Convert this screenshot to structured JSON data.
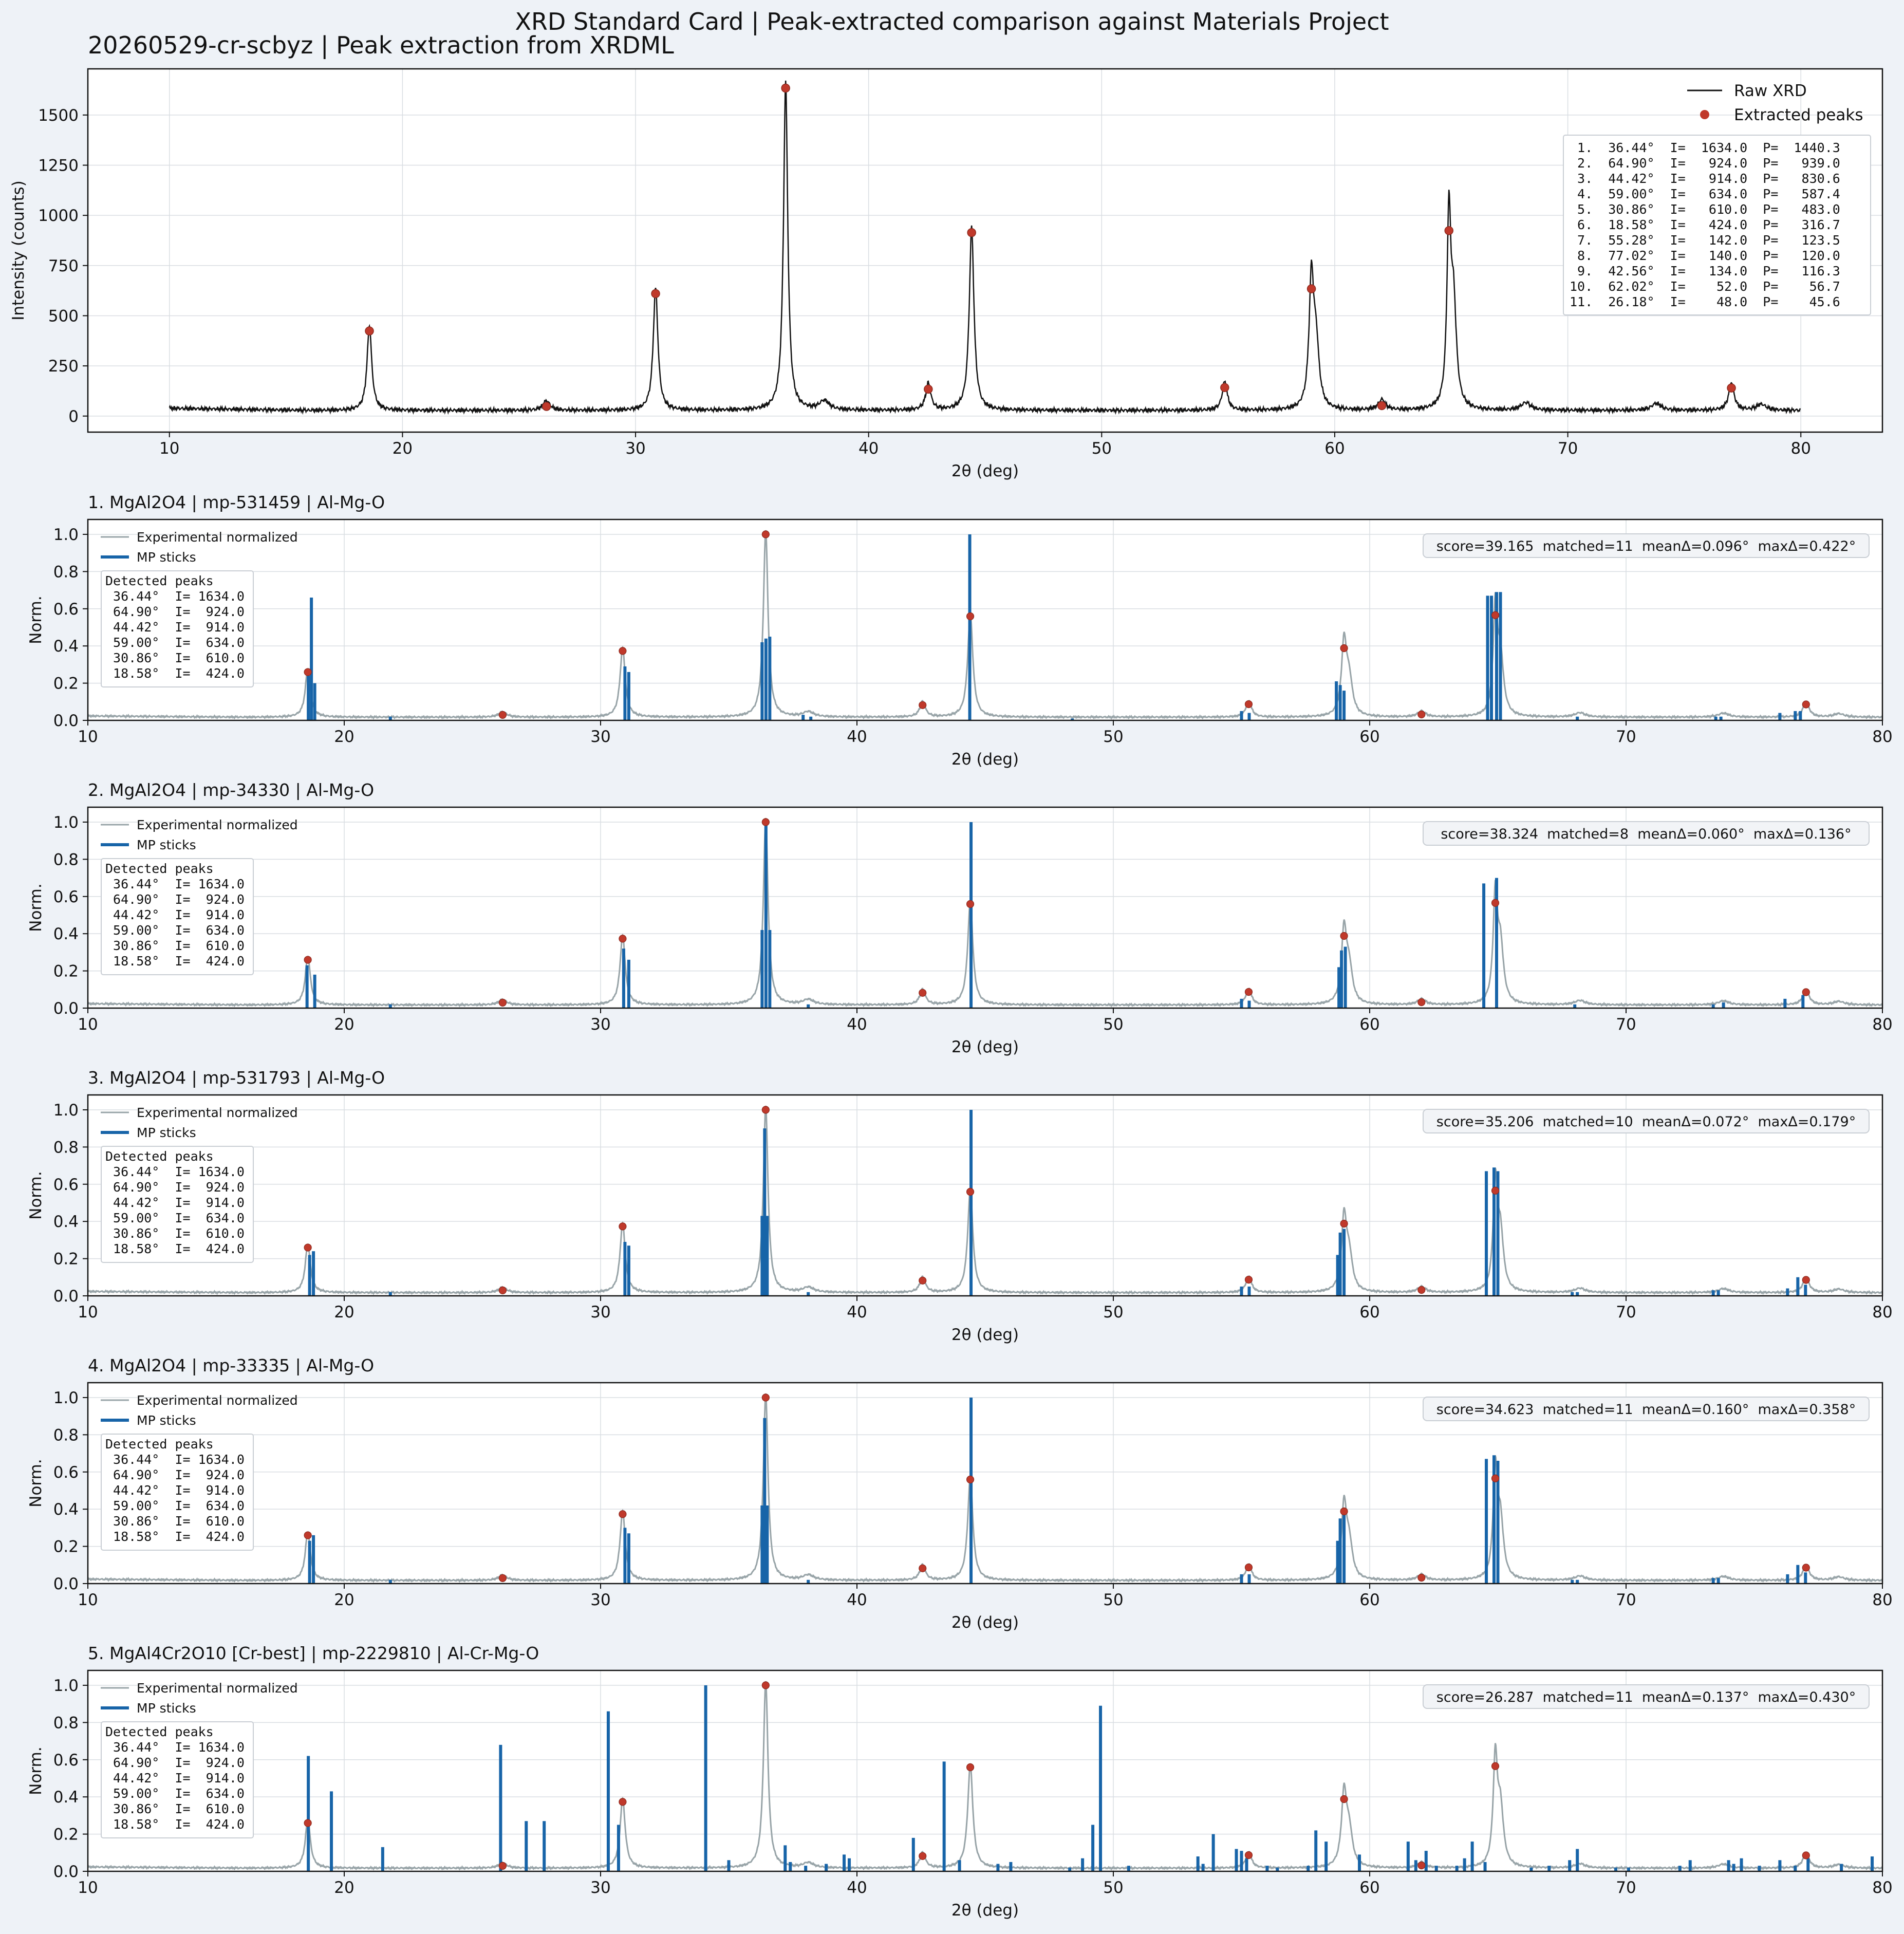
{
  "figure": {
    "suptitle": "XRD Standard Card | Peak-extracted comparison against Materials Project",
    "colors": {
      "background": "#eef2f7",
      "raw_line": "#111111",
      "experimental_line": "#98a4a8",
      "stick": "#1764a8",
      "peak_marker": "#c0392b",
      "grid": "#d9dde2"
    }
  },
  "chart_data": [
    {
      "id": "raw",
      "type": "line",
      "title": "20260529-cr-scbyz | Peak extraction from XRDML",
      "xlabel": "2θ (deg)",
      "ylabel": "Intensity (counts)",
      "xlim": [
        6.5,
        83.5
      ],
      "ylim": [
        -80,
        1730
      ],
      "xticks": [
        10,
        20,
        30,
        40,
        50,
        60,
        70,
        80
      ],
      "yticks": [
        0,
        250,
        500,
        750,
        1000,
        1250,
        1500
      ],
      "grid": true,
      "legend": {
        "position": "top-right",
        "entries": [
          "Raw XRD",
          "Extracted peaks"
        ]
      },
      "x_range": [
        10,
        80
      ],
      "baseline": 28,
      "peaks": [
        {
          "x": 18.58,
          "y": 424,
          "w": 0.12
        },
        {
          "x": 26.18,
          "y": 48,
          "w": 0.18
        },
        {
          "x": 30.86,
          "y": 610,
          "w": 0.12
        },
        {
          "x": 36.44,
          "y": 1634,
          "w": 0.11
        },
        {
          "x": 38.1,
          "y": 45,
          "w": 0.25
        },
        {
          "x": 42.56,
          "y": 134,
          "w": 0.13
        },
        {
          "x": 44.42,
          "y": 914,
          "w": 0.12
        },
        {
          "x": 55.28,
          "y": 142,
          "w": 0.13
        },
        {
          "x": 59.0,
          "y": 634,
          "w": 0.12
        },
        {
          "x": 59.2,
          "y": 300,
          "w": 0.15
        },
        {
          "x": 62.02,
          "y": 52,
          "w": 0.18
        },
        {
          "x": 64.9,
          "y": 924,
          "w": 0.1
        },
        {
          "x": 65.1,
          "y": 500,
          "w": 0.14
        },
        {
          "x": 68.2,
          "y": 38,
          "w": 0.25
        },
        {
          "x": 73.8,
          "y": 35,
          "w": 0.25
        },
        {
          "x": 77.02,
          "y": 140,
          "w": 0.14
        },
        {
          "x": 78.3,
          "y": 30,
          "w": 0.25
        }
      ],
      "extracted_peaks": [
        {
          "x": 36.44,
          "y": 1634
        },
        {
          "x": 64.9,
          "y": 924
        },
        {
          "x": 44.42,
          "y": 914
        },
        {
          "x": 59.0,
          "y": 634
        },
        {
          "x": 30.86,
          "y": 610
        },
        {
          "x": 18.58,
          "y": 424
        },
        {
          "x": 55.28,
          "y": 142
        },
        {
          "x": 77.02,
          "y": 140
        },
        {
          "x": 42.56,
          "y": 134
        },
        {
          "x": 62.02,
          "y": 52
        },
        {
          "x": 26.18,
          "y": 48
        }
      ],
      "peak_table": [
        " 1.  36.44°  I=  1634.0  P=  1440.3",
        " 2.  64.90°  I=   924.0  P=   939.0",
        " 3.  44.42°  I=   914.0  P=   830.6",
        " 4.  59.00°  I=   634.0  P=   587.4",
        " 5.  30.86°  I=   610.0  P=   483.0",
        " 6.  18.58°  I=   424.0  P=   316.7",
        " 7.  55.28°  I=   142.0  P=   123.5",
        " 8.  77.02°  I=   140.0  P=   120.0",
        " 9.  42.56°  I=   134.0  P=   116.3",
        "10.  62.02°  I=    52.0  P=    56.7",
        "11.  26.18°  I=    48.0  P=    45.6"
      ]
    },
    {
      "id": "match1",
      "type": "bar",
      "title": "1. MgAl2O4 | mp-531459 | Al-Mg-O",
      "xlabel": "2θ (deg)",
      "ylabel": "Norm.",
      "xlim": [
        10,
        80
      ],
      "ylim": [
        0,
        1.08
      ],
      "xticks": [
        10,
        20,
        30,
        40,
        50,
        60,
        70,
        80
      ],
      "yticks": [
        0.0,
        0.2,
        0.4,
        0.6,
        0.8,
        1.0
      ],
      "legend": {
        "position": "top-left",
        "entries": [
          "Experimental normalized",
          "MP sticks"
        ]
      },
      "score_text": "score=39.165  matched=11  meanΔ=0.096°  maxΔ=0.422°",
      "detected_title": "Detected peaks",
      "detected_lines": [
        " 36.44°  I= 1634.0",
        " 64.90°  I=  924.0",
        " 44.42°  I=  914.0",
        " 59.00°  I=  634.0",
        " 30.86°  I=  610.0",
        " 18.58°  I=  424.0"
      ],
      "sticks": [
        {
          "x": 18.6,
          "y": 0.24
        },
        {
          "x": 18.72,
          "y": 0.66
        },
        {
          "x": 18.85,
          "y": 0.2
        },
        {
          "x": 21.8,
          "y": 0.02
        },
        {
          "x": 30.95,
          "y": 0.29
        },
        {
          "x": 31.1,
          "y": 0.26
        },
        {
          "x": 36.3,
          "y": 0.42
        },
        {
          "x": 36.45,
          "y": 0.44
        },
        {
          "x": 36.6,
          "y": 0.45
        },
        {
          "x": 37.9,
          "y": 0.03
        },
        {
          "x": 38.2,
          "y": 0.02
        },
        {
          "x": 44.4,
          "y": 1.0
        },
        {
          "x": 48.4,
          "y": 0.01
        },
        {
          "x": 55.0,
          "y": 0.05
        },
        {
          "x": 55.3,
          "y": 0.04
        },
        {
          "x": 58.7,
          "y": 0.21
        },
        {
          "x": 58.85,
          "y": 0.19
        },
        {
          "x": 59.0,
          "y": 0.16
        },
        {
          "x": 64.6,
          "y": 0.67
        },
        {
          "x": 64.75,
          "y": 0.67
        },
        {
          "x": 64.95,
          "y": 0.69
        },
        {
          "x": 65.1,
          "y": 0.69
        },
        {
          "x": 68.1,
          "y": 0.02
        },
        {
          "x": 73.5,
          "y": 0.02
        },
        {
          "x": 73.7,
          "y": 0.02
        },
        {
          "x": 76.0,
          "y": 0.04
        },
        {
          "x": 76.6,
          "y": 0.05
        },
        {
          "x": 76.8,
          "y": 0.05
        }
      ]
    },
    {
      "id": "match2",
      "type": "bar",
      "title": "2. MgAl2O4 | mp-34330 | Al-Mg-O",
      "xlabel": "2θ (deg)",
      "ylabel": "Norm.",
      "xlim": [
        10,
        80
      ],
      "ylim": [
        0,
        1.08
      ],
      "xticks": [
        10,
        20,
        30,
        40,
        50,
        60,
        70,
        80
      ],
      "yticks": [
        0.0,
        0.2,
        0.4,
        0.6,
        0.8,
        1.0
      ],
      "legend": {
        "position": "top-left",
        "entries": [
          "Experimental normalized",
          "MP sticks"
        ]
      },
      "score_text": "score=38.324  matched=8  meanΔ=0.060°  maxΔ=0.136°",
      "detected_title": "Detected peaks",
      "detected_lines": [
        " 36.44°  I= 1634.0",
        " 64.90°  I=  924.0",
        " 44.42°  I=  914.0",
        " 59.00°  I=  634.0",
        " 30.86°  I=  610.0",
        " 18.58°  I=  424.0"
      ],
      "sticks": [
        {
          "x": 18.55,
          "y": 0.23
        },
        {
          "x": 18.85,
          "y": 0.18
        },
        {
          "x": 21.8,
          "y": 0.02
        },
        {
          "x": 30.9,
          "y": 0.32
        },
        {
          "x": 31.1,
          "y": 0.26
        },
        {
          "x": 36.3,
          "y": 0.42
        },
        {
          "x": 36.45,
          "y": 1.0
        },
        {
          "x": 36.6,
          "y": 0.42
        },
        {
          "x": 38.1,
          "y": 0.02
        },
        {
          "x": 44.45,
          "y": 1.0
        },
        {
          "x": 55.0,
          "y": 0.05
        },
        {
          "x": 55.3,
          "y": 0.04
        },
        {
          "x": 58.8,
          "y": 0.22
        },
        {
          "x": 58.9,
          "y": 0.31
        },
        {
          "x": 59.05,
          "y": 0.33
        },
        {
          "x": 64.45,
          "y": 0.67
        },
        {
          "x": 64.95,
          "y": 0.7
        },
        {
          "x": 68.0,
          "y": 0.02
        },
        {
          "x": 73.4,
          "y": 0.02
        },
        {
          "x": 73.8,
          "y": 0.03
        },
        {
          "x": 76.2,
          "y": 0.05
        },
        {
          "x": 76.9,
          "y": 0.07
        }
      ]
    },
    {
      "id": "match3",
      "type": "bar",
      "title": "3. MgAl2O4 | mp-531793 | Al-Mg-O",
      "xlabel": "2θ (deg)",
      "ylabel": "Norm.",
      "xlim": [
        10,
        80
      ],
      "ylim": [
        0,
        1.08
      ],
      "xticks": [
        10,
        20,
        30,
        40,
        50,
        60,
        70,
        80
      ],
      "yticks": [
        0.0,
        0.2,
        0.4,
        0.6,
        0.8,
        1.0
      ],
      "legend": {
        "position": "top-left",
        "entries": [
          "Experimental normalized",
          "MP sticks"
        ]
      },
      "score_text": "score=35.206  matched=10  meanΔ=0.072°  maxΔ=0.179°",
      "detected_title": "Detected peaks",
      "detected_lines": [
        " 36.44°  I= 1634.0",
        " 64.90°  I=  924.0",
        " 44.42°  I=  914.0",
        " 59.00°  I=  634.0",
        " 30.86°  I=  610.0",
        " 18.58°  I=  424.0"
      ],
      "sticks": [
        {
          "x": 18.65,
          "y": 0.22
        },
        {
          "x": 18.8,
          "y": 0.24
        },
        {
          "x": 21.8,
          "y": 0.02
        },
        {
          "x": 30.95,
          "y": 0.29
        },
        {
          "x": 31.1,
          "y": 0.27
        },
        {
          "x": 36.3,
          "y": 0.43
        },
        {
          "x": 36.4,
          "y": 0.9
        },
        {
          "x": 36.5,
          "y": 0.43
        },
        {
          "x": 38.1,
          "y": 0.02
        },
        {
          "x": 44.45,
          "y": 1.0
        },
        {
          "x": 55.0,
          "y": 0.05
        },
        {
          "x": 55.3,
          "y": 0.05
        },
        {
          "x": 58.75,
          "y": 0.22
        },
        {
          "x": 58.85,
          "y": 0.34
        },
        {
          "x": 59.0,
          "y": 0.36
        },
        {
          "x": 64.55,
          "y": 0.67
        },
        {
          "x": 64.85,
          "y": 0.69
        },
        {
          "x": 65.0,
          "y": 0.67
        },
        {
          "x": 67.9,
          "y": 0.02
        },
        {
          "x": 68.1,
          "y": 0.02
        },
        {
          "x": 73.4,
          "y": 0.03
        },
        {
          "x": 73.6,
          "y": 0.03
        },
        {
          "x": 76.3,
          "y": 0.04
        },
        {
          "x": 76.7,
          "y": 0.1
        },
        {
          "x": 77.0,
          "y": 0.06
        }
      ]
    },
    {
      "id": "match4",
      "type": "bar",
      "title": "4. MgAl2O4 | mp-33335 | Al-Mg-O",
      "xlabel": "2θ (deg)",
      "ylabel": "Norm.",
      "xlim": [
        10,
        80
      ],
      "ylim": [
        0,
        1.08
      ],
      "xticks": [
        10,
        20,
        30,
        40,
        50,
        60,
        70,
        80
      ],
      "yticks": [
        0.0,
        0.2,
        0.4,
        0.6,
        0.8,
        1.0
      ],
      "legend": {
        "position": "top-left",
        "entries": [
          "Experimental normalized",
          "MP sticks"
        ]
      },
      "score_text": "score=34.623  matched=11  meanΔ=0.160°  maxΔ=0.358°",
      "detected_title": "Detected peaks",
      "detected_lines": [
        " 36.44°  I= 1634.0",
        " 64.90°  I=  924.0",
        " 44.42°  I=  914.0",
        " 59.00°  I=  634.0",
        " 30.86°  I=  610.0",
        " 18.58°  I=  424.0"
      ],
      "sticks": [
        {
          "x": 18.65,
          "y": 0.23
        },
        {
          "x": 18.8,
          "y": 0.26
        },
        {
          "x": 21.8,
          "y": 0.02
        },
        {
          "x": 30.95,
          "y": 0.3
        },
        {
          "x": 31.1,
          "y": 0.27
        },
        {
          "x": 36.3,
          "y": 0.42
        },
        {
          "x": 36.4,
          "y": 0.89
        },
        {
          "x": 36.5,
          "y": 0.42
        },
        {
          "x": 38.1,
          "y": 0.02
        },
        {
          "x": 44.45,
          "y": 1.0
        },
        {
          "x": 55.0,
          "y": 0.05
        },
        {
          "x": 55.3,
          "y": 0.05
        },
        {
          "x": 58.75,
          "y": 0.23
        },
        {
          "x": 58.85,
          "y": 0.35
        },
        {
          "x": 59.0,
          "y": 0.38
        },
        {
          "x": 64.55,
          "y": 0.67
        },
        {
          "x": 64.85,
          "y": 0.69
        },
        {
          "x": 65.0,
          "y": 0.66
        },
        {
          "x": 67.9,
          "y": 0.02
        },
        {
          "x": 68.1,
          "y": 0.02
        },
        {
          "x": 73.4,
          "y": 0.03
        },
        {
          "x": 73.6,
          "y": 0.03
        },
        {
          "x": 76.3,
          "y": 0.05
        },
        {
          "x": 76.7,
          "y": 0.1
        },
        {
          "x": 77.0,
          "y": 0.06
        }
      ]
    },
    {
      "id": "match5",
      "type": "bar",
      "title": "5. MgAl4Cr2O10 [Cr-best] | mp-2229810 | Al-Cr-Mg-O",
      "xlabel": "2θ (deg)",
      "ylabel": "Norm.",
      "xlim": [
        10,
        80
      ],
      "ylim": [
        0,
        1.08
      ],
      "xticks": [
        10,
        20,
        30,
        40,
        50,
        60,
        70,
        80
      ],
      "yticks": [
        0.0,
        0.2,
        0.4,
        0.6,
        0.8,
        1.0
      ],
      "legend": {
        "position": "top-left",
        "entries": [
          "Experimental normalized",
          "MP sticks"
        ]
      },
      "score_text": "score=26.287  matched=11  meanΔ=0.137°  maxΔ=0.430°",
      "detected_title": "Detected peaks",
      "detected_lines": [
        " 36.44°  I= 1634.0",
        " 64.90°  I=  924.0",
        " 44.42°  I=  914.0",
        " 59.00°  I=  634.0",
        " 30.86°  I=  610.0",
        " 18.58°  I=  424.0"
      ],
      "sticks": [
        {
          "x": 18.6,
          "y": 0.62
        },
        {
          "x": 19.5,
          "y": 0.43
        },
        {
          "x": 21.5,
          "y": 0.13
        },
        {
          "x": 26.1,
          "y": 0.68
        },
        {
          "x": 27.1,
          "y": 0.27
        },
        {
          "x": 27.8,
          "y": 0.27
        },
        {
          "x": 30.3,
          "y": 0.86
        },
        {
          "x": 30.7,
          "y": 0.25
        },
        {
          "x": 34.1,
          "y": 1.0
        },
        {
          "x": 35.0,
          "y": 0.06
        },
        {
          "x": 37.2,
          "y": 0.14
        },
        {
          "x": 37.4,
          "y": 0.05
        },
        {
          "x": 38.0,
          "y": 0.03
        },
        {
          "x": 38.8,
          "y": 0.04
        },
        {
          "x": 39.5,
          "y": 0.09
        },
        {
          "x": 39.7,
          "y": 0.07
        },
        {
          "x": 42.2,
          "y": 0.18
        },
        {
          "x": 43.4,
          "y": 0.59
        },
        {
          "x": 44.0,
          "y": 0.06
        },
        {
          "x": 45.5,
          "y": 0.04
        },
        {
          "x": 46.0,
          "y": 0.05
        },
        {
          "x": 48.3,
          "y": 0.02
        },
        {
          "x": 48.8,
          "y": 0.07
        },
        {
          "x": 49.2,
          "y": 0.25
        },
        {
          "x": 49.5,
          "y": 0.89
        },
        {
          "x": 50.6,
          "y": 0.03
        },
        {
          "x": 53.3,
          "y": 0.08
        },
        {
          "x": 53.5,
          "y": 0.04
        },
        {
          "x": 53.9,
          "y": 0.2
        },
        {
          "x": 54.8,
          "y": 0.12
        },
        {
          "x": 55.0,
          "y": 0.11
        },
        {
          "x": 55.2,
          "y": 0.07
        },
        {
          "x": 56.0,
          "y": 0.03
        },
        {
          "x": 56.4,
          "y": 0.02
        },
        {
          "x": 57.6,
          "y": 0.03
        },
        {
          "x": 57.9,
          "y": 0.22
        },
        {
          "x": 58.3,
          "y": 0.16
        },
        {
          "x": 59.6,
          "y": 0.09
        },
        {
          "x": 61.5,
          "y": 0.16
        },
        {
          "x": 61.8,
          "y": 0.06
        },
        {
          "x": 62.2,
          "y": 0.11
        },
        {
          "x": 62.6,
          "y": 0.03
        },
        {
          "x": 63.4,
          "y": 0.03
        },
        {
          "x": 63.7,
          "y": 0.07
        },
        {
          "x": 64.0,
          "y": 0.16
        },
        {
          "x": 64.5,
          "y": 0.05
        },
        {
          "x": 66.3,
          "y": 0.02
        },
        {
          "x": 67.0,
          "y": 0.03
        },
        {
          "x": 67.8,
          "y": 0.06
        },
        {
          "x": 68.1,
          "y": 0.12
        },
        {
          "x": 69.6,
          "y": 0.02
        },
        {
          "x": 70.1,
          "y": 0.02
        },
        {
          "x": 72.1,
          "y": 0.03
        },
        {
          "x": 72.5,
          "y": 0.06
        },
        {
          "x": 74.0,
          "y": 0.06
        },
        {
          "x": 74.2,
          "y": 0.04
        },
        {
          "x": 74.5,
          "y": 0.07
        },
        {
          "x": 75.2,
          "y": 0.03
        },
        {
          "x": 76.0,
          "y": 0.06
        },
        {
          "x": 76.6,
          "y": 0.03
        },
        {
          "x": 77.1,
          "y": 0.07
        },
        {
          "x": 78.4,
          "y": 0.04
        },
        {
          "x": 79.6,
          "y": 0.08
        }
      ]
    }
  ]
}
